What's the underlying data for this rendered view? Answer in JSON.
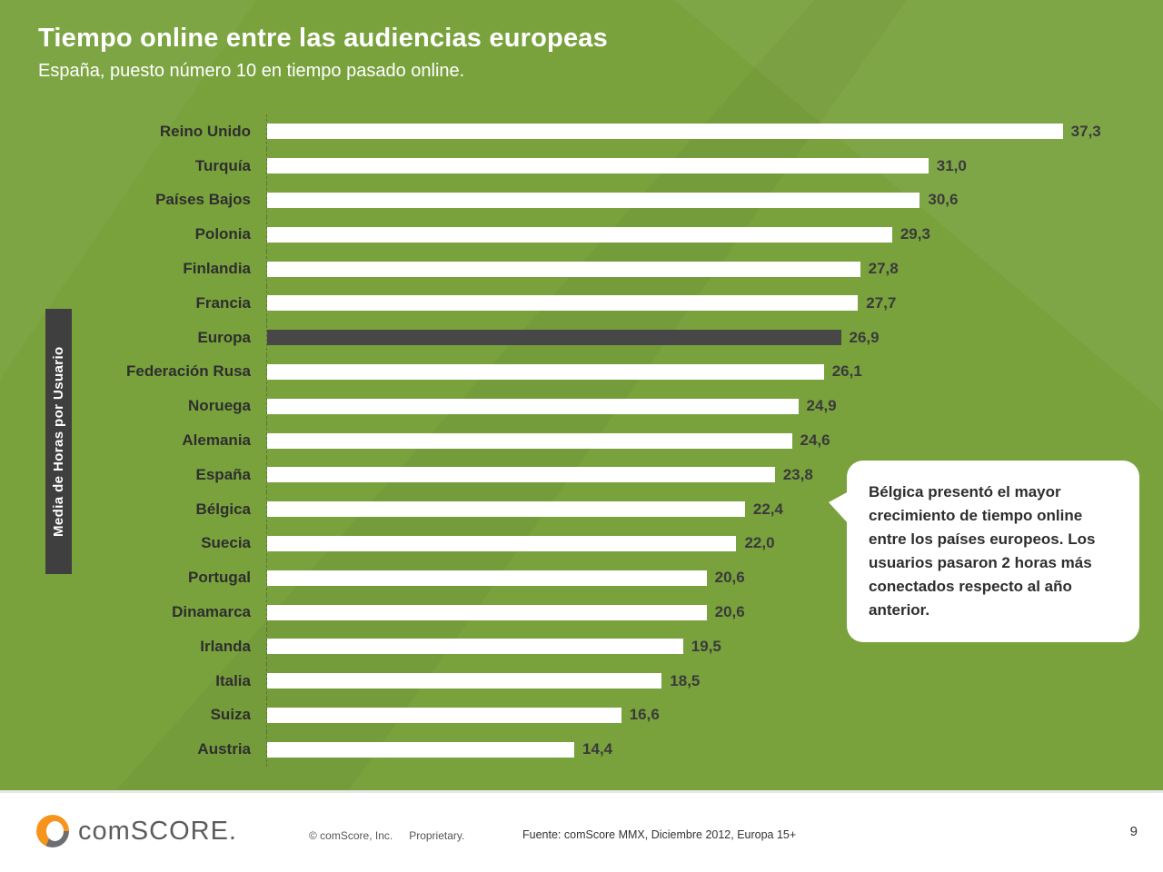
{
  "title": "Tiempo online entre las audiencias europeas",
  "subtitle": "España, puesto número 10 en tiempo pasado online.",
  "y_axis_label": "Media de Horas por Usuario",
  "chart_data": {
    "type": "bar",
    "orientation": "horizontal",
    "title": "Tiempo online entre las audiencias europeas",
    "xlabel": "",
    "ylabel": "Media de Horas por Usuario",
    "xlim": [
      0,
      42
    ],
    "grid": false,
    "legend": "none",
    "categories": [
      "Reino Unido",
      "Turquía",
      "Países Bajos",
      "Polonia",
      "Finlandia",
      "Francia",
      "Europa",
      "Federación Rusa",
      "Noruega",
      "Alemania",
      "España",
      "Bélgica",
      "Suecia",
      "Portugal",
      "Dinamarca",
      "Irlanda",
      "Italia",
      "Suiza",
      "Austria"
    ],
    "values": [
      37.3,
      31.0,
      30.6,
      29.3,
      27.8,
      27.7,
      26.9,
      26.1,
      24.9,
      24.6,
      23.8,
      22.4,
      22.0,
      20.6,
      20.6,
      19.5,
      18.5,
      16.6,
      14.4
    ],
    "value_labels": [
      "37,3",
      "31,0",
      "30,6",
      "29,3",
      "27,8",
      "27,7",
      "26,9",
      "26,1",
      "24,9",
      "24,6",
      "23,8",
      "22,4",
      "22,0",
      "20,6",
      "20,6",
      "19,5",
      "18,5",
      "16,6",
      "14,4"
    ],
    "highlight_category": "Europa",
    "bar_color": "#ffffff",
    "highlight_color": "#474747",
    "background_color": "#79a23d"
  },
  "callout": {
    "text": "Bélgica presentó el mayor crecimiento de tiempo online entre los países europeos. Los usuarios pasaron 2 horas más conectados respecto al año anterior."
  },
  "footer": {
    "logo_text": "comSCORE.",
    "copyright": "© comScore, Inc.",
    "proprietary": "Proprietary.",
    "source": "Fuente: comScore MMX,  Diciembre 2012, Europa 15+",
    "page_number": "9"
  }
}
